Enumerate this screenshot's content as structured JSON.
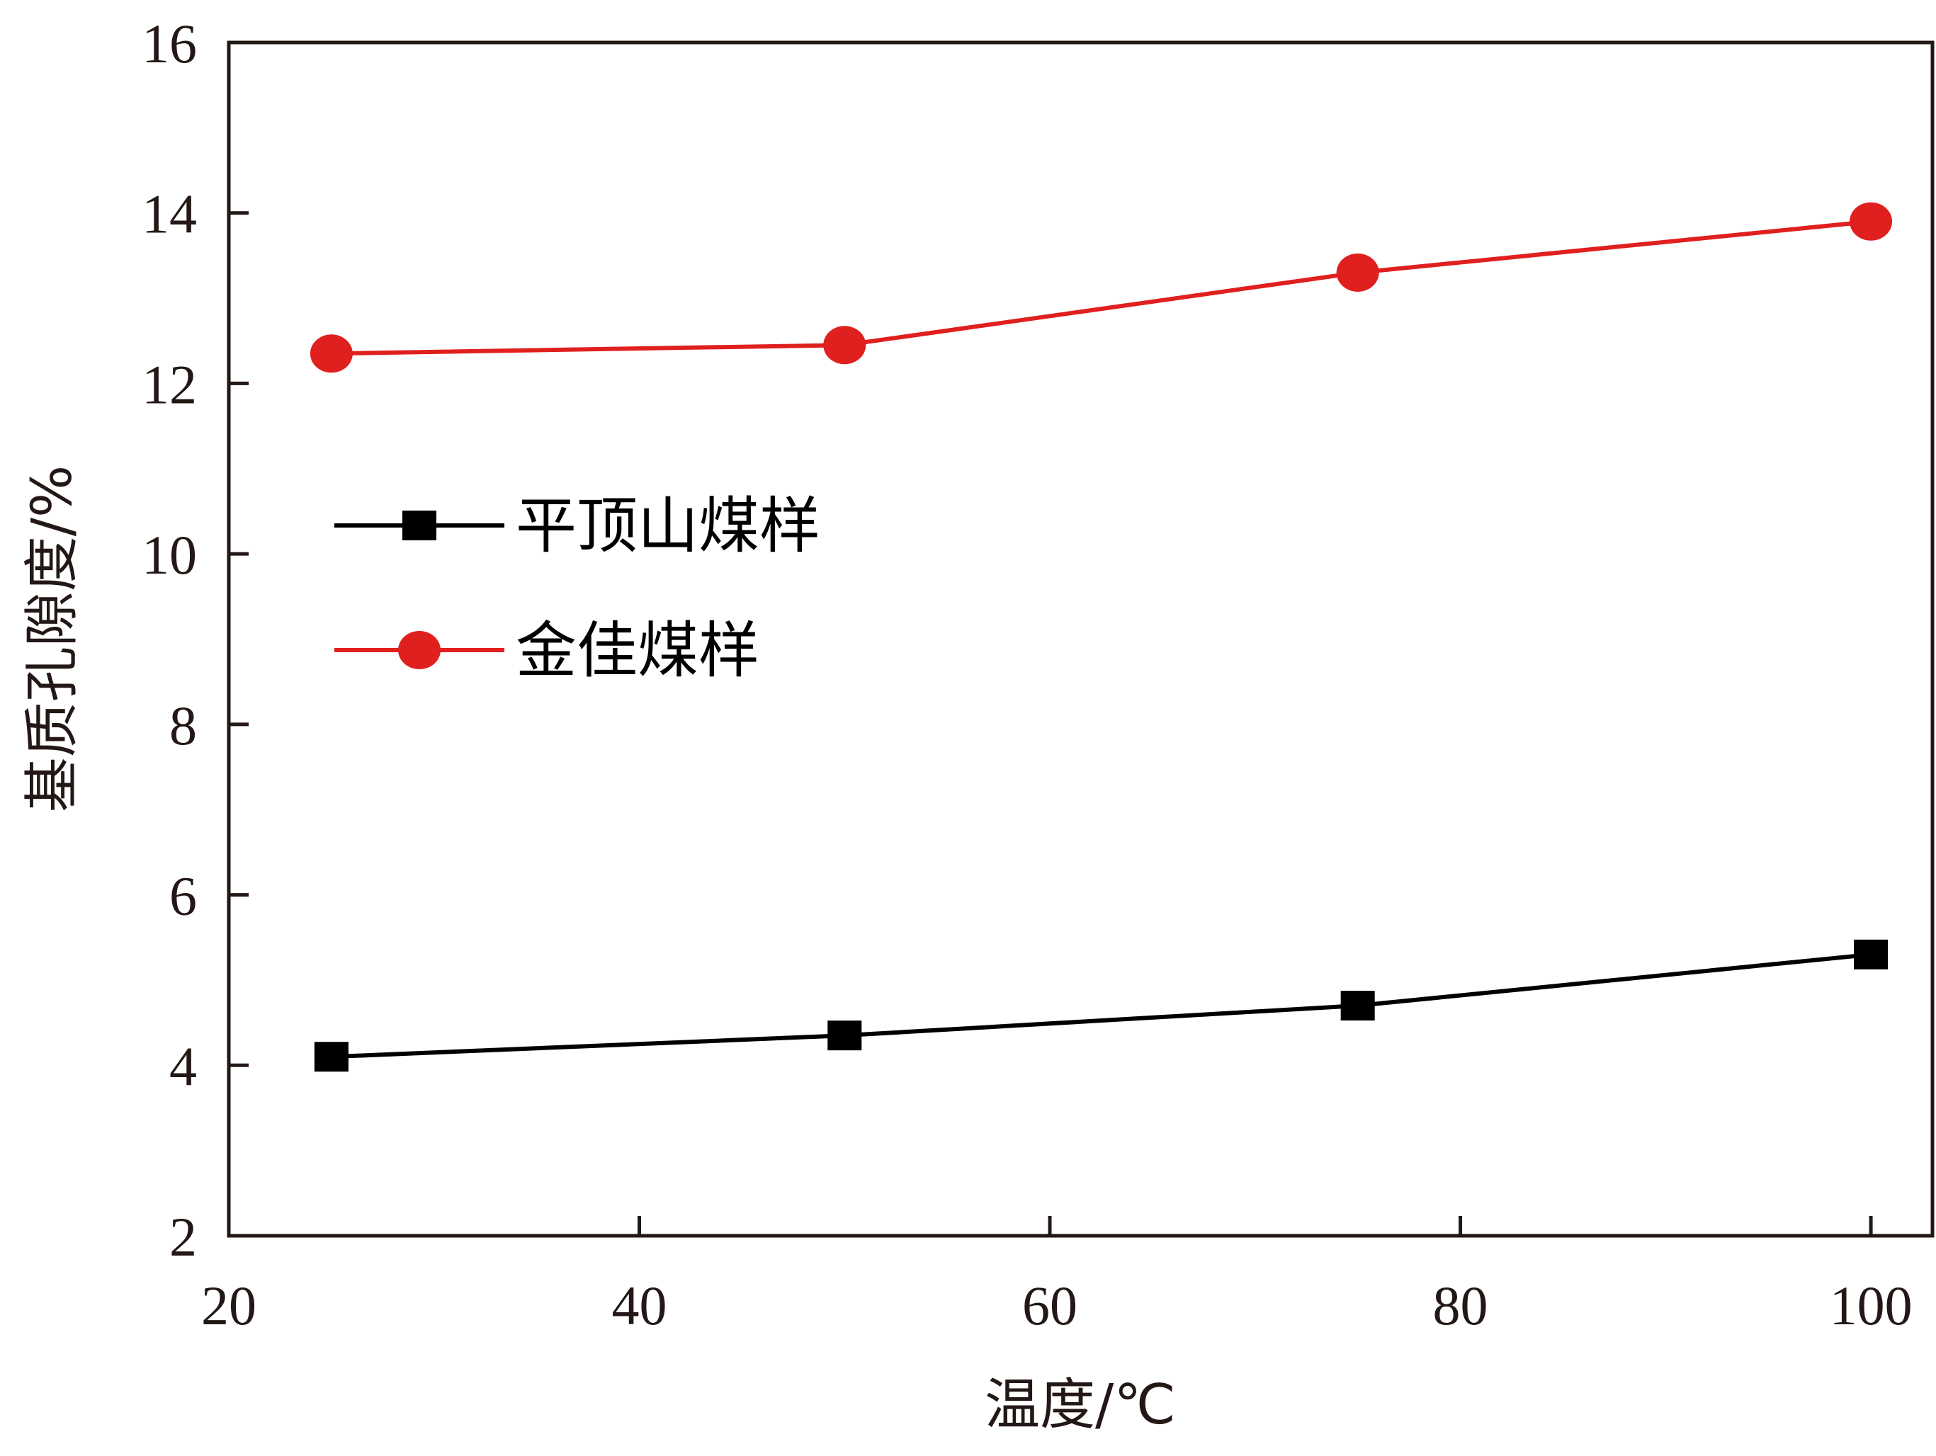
{
  "chart_data": {
    "type": "line",
    "x": [
      25,
      50,
      75,
      100
    ],
    "xlabel": "温度/℃",
    "ylabel": "基质孔隙度/%",
    "xlim": [
      20,
      103
    ],
    "ylim": [
      2,
      16
    ],
    "xticks": [
      20,
      40,
      60,
      80,
      100
    ],
    "yticks": [
      2,
      4,
      6,
      8,
      10,
      12,
      14,
      16
    ],
    "xtick_labels": [
      "20",
      "40",
      "60",
      "80",
      "100"
    ],
    "ytick_labels": [
      "2",
      "4",
      "6",
      "8",
      "10",
      "12",
      "14",
      "16"
    ],
    "grid": false,
    "legend_position": "center-left",
    "series": [
      {
        "name": "平顶山煤样",
        "values": [
          4.1,
          4.35,
          4.7,
          5.3
        ],
        "color": "#000000",
        "marker": "square"
      },
      {
        "name": "金佳煤样",
        "values": [
          12.35,
          12.45,
          13.3,
          13.9
        ],
        "color": "#e0201e",
        "marker": "circle"
      }
    ]
  }
}
